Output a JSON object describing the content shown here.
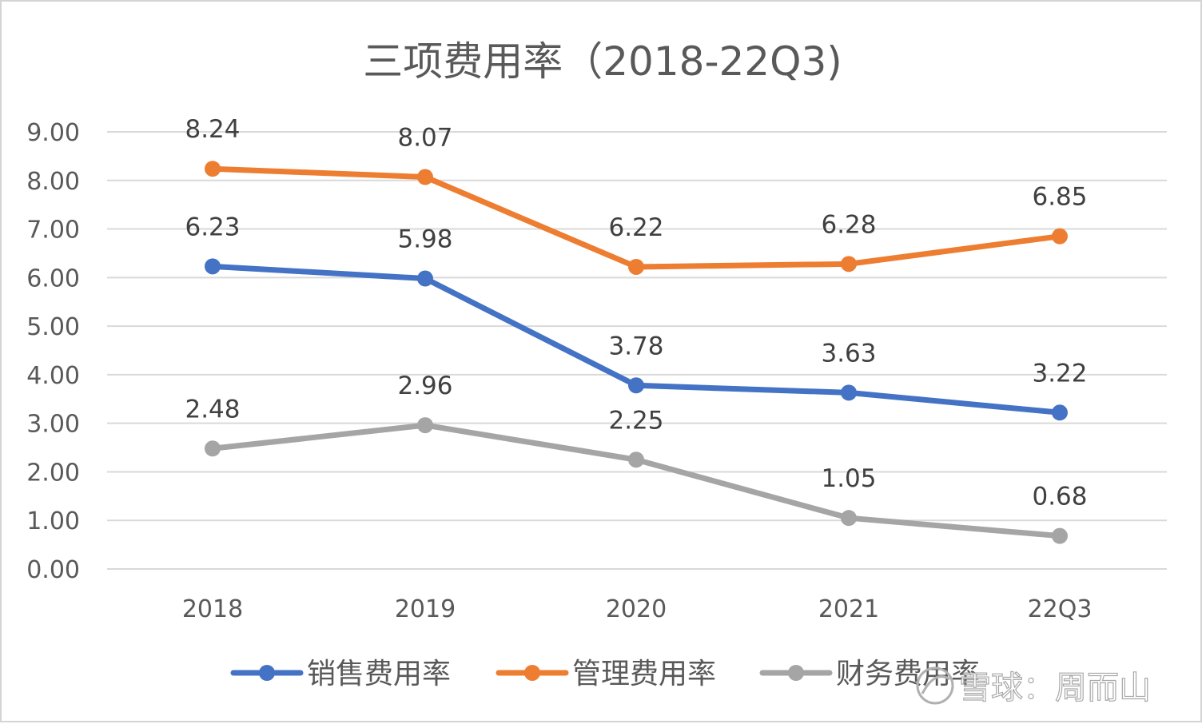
{
  "chart_data": {
    "type": "line",
    "title": "三项费用率（2018-22Q3)",
    "categories": [
      "2018",
      "2019",
      "2020",
      "2021",
      "22Q3"
    ],
    "ylim": [
      0,
      9
    ],
    "yticks": [
      "0.00",
      "1.00",
      "2.00",
      "3.00",
      "4.00",
      "5.00",
      "6.00",
      "7.00",
      "8.00",
      "9.00"
    ],
    "grid": true,
    "legend_position": "bottom",
    "series": [
      {
        "name": "销售费用率",
        "color": "#4472c4",
        "values": [
          6.23,
          5.98,
          3.78,
          3.63,
          3.22
        ],
        "labels": [
          "6.23",
          "5.98",
          "3.78",
          "3.63",
          "3.22"
        ]
      },
      {
        "name": "管理费用率",
        "color": "#ed7d31",
        "values": [
          8.24,
          8.07,
          6.22,
          6.28,
          6.85
        ],
        "labels": [
          "8.24",
          "8.07",
          "6.22",
          "6.28",
          "6.85"
        ]
      },
      {
        "name": "财务费用率",
        "color": "#a5a5a5",
        "values": [
          2.48,
          2.96,
          2.25,
          1.05,
          0.68
        ],
        "labels": [
          "2.48",
          "2.96",
          "2.25",
          "1.05",
          "0.68"
        ]
      }
    ]
  },
  "watermark": {
    "text": "雪球：周而山",
    "icon": "snowball-logo-icon"
  }
}
